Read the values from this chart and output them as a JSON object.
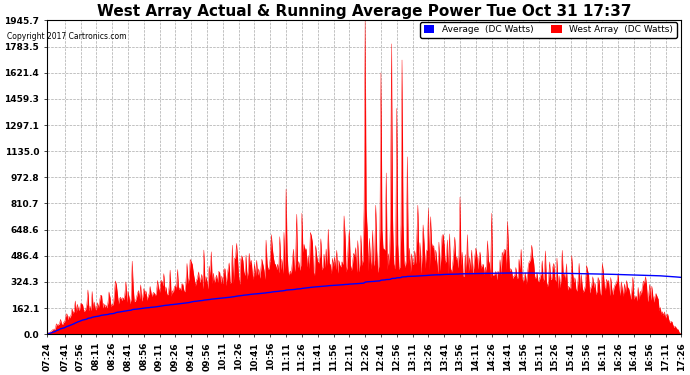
{
  "title": "West Array Actual & Running Average Power Tue Oct 31 17:37",
  "copyright": "Copyright 2017 Cartronics.com",
  "legend_labels": [
    "Average  (DC Watts)",
    "West Array  (DC Watts)"
  ],
  "legend_colors": [
    "#0000ff",
    "#ff0000"
  ],
  "yticks": [
    0.0,
    162.1,
    324.3,
    486.4,
    648.6,
    810.7,
    972.8,
    1135.0,
    1297.1,
    1459.3,
    1621.4,
    1783.5,
    1945.7
  ],
  "ymax": 1945.7,
  "ymin": 0.0,
  "background_color": "#ffffff",
  "plot_bg_color": "#ffffff",
  "grid_color": "#aaaaaa",
  "red_color": "#ff0000",
  "blue_color": "#0000ff",
  "title_fontsize": 11,
  "axis_fontsize": 6.5,
  "xtick_labels": [
    "07:24",
    "07:41",
    "07:56",
    "08:11",
    "08:26",
    "08:41",
    "08:56",
    "09:11",
    "09:26",
    "09:41",
    "09:56",
    "10:11",
    "10:26",
    "10:41",
    "10:56",
    "11:11",
    "11:26",
    "11:41",
    "11:56",
    "12:11",
    "12:26",
    "12:41",
    "12:56",
    "13:11",
    "13:26",
    "13:41",
    "13:56",
    "14:11",
    "14:26",
    "14:41",
    "14:56",
    "15:11",
    "15:26",
    "15:41",
    "15:56",
    "16:11",
    "16:26",
    "16:41",
    "16:56",
    "17:11",
    "17:26"
  ]
}
